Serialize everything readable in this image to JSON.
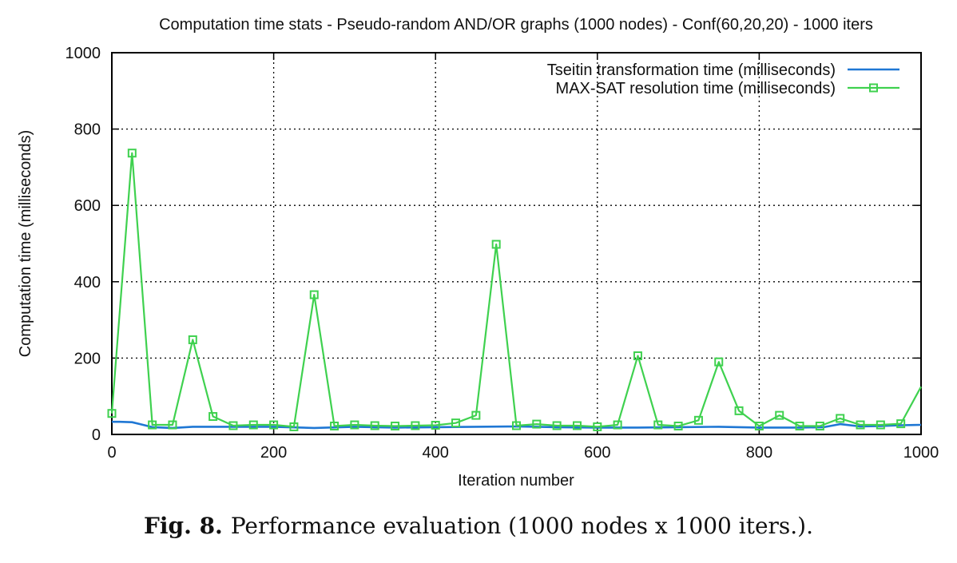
{
  "chart_data": {
    "type": "line",
    "title": "Computation time stats - Pseudo-random AND/OR graphs (1000 nodes) - Conf(60,20,20) - 1000 iters",
    "xlabel": "Iteration number",
    "ylabel": "Computation time (milliseconds)",
    "xlim": [
      0,
      1000
    ],
    "ylim": [
      0,
      1000
    ],
    "xticks": [
      0,
      200,
      400,
      600,
      800,
      1000
    ],
    "yticks": [
      0,
      200,
      400,
      600,
      800,
      1000
    ],
    "grid": true,
    "legend_position": "top-right",
    "series": [
      {
        "name": "Tseitin transformation time (milliseconds)",
        "color": "#1f77d4",
        "marker": "none",
        "x": [
          0,
          10,
          25,
          35,
          50,
          75,
          100,
          150,
          200,
          250,
          300,
          350,
          400,
          450,
          500,
          550,
          600,
          650,
          700,
          750,
          800,
          850,
          880,
          900,
          925,
          950,
          975,
          1000
        ],
        "y": [
          33,
          33,
          32,
          27,
          19,
          17,
          20,
          20,
          20,
          17,
          20,
          18,
          19,
          20,
          21,
          19,
          18,
          18,
          19,
          20,
          18,
          18,
          19,
          27,
          21,
          22,
          24,
          25
        ]
      },
      {
        "name": "MAX-SAT resolution time (milliseconds)",
        "color": "#3fd14f",
        "marker": "square",
        "x": [
          0,
          25,
          50,
          75,
          100,
          125,
          150,
          175,
          200,
          225,
          250,
          275,
          300,
          325,
          350,
          375,
          400,
          425,
          450,
          475,
          500,
          525,
          550,
          575,
          600,
          625,
          650,
          675,
          700,
          725,
          750,
          775,
          800,
          825,
          850,
          875,
          900,
          925,
          950,
          975,
          1000
        ],
        "y": [
          55,
          737,
          25,
          25,
          248,
          47,
          23,
          25,
          25,
          20,
          366,
          22,
          25,
          23,
          22,
          23,
          24,
          30,
          50,
          498,
          23,
          27,
          23,
          23,
          20,
          25,
          206,
          25,
          22,
          37,
          190,
          62,
          22,
          50,
          22,
          22,
          42,
          25,
          25,
          28,
          125
        ],
        "marker_at": [
          0,
          25,
          50,
          75,
          100,
          125,
          150,
          175,
          200,
          225,
          250,
          275,
          300,
          325,
          350,
          375,
          400,
          425,
          450,
          475,
          500,
          525,
          550,
          575,
          600,
          625,
          650,
          675,
          700,
          725,
          750,
          775,
          800,
          825,
          850,
          875,
          900,
          925,
          950,
          975
        ]
      }
    ]
  },
  "caption": {
    "label": "Fig. 8.",
    "text": "Performance evaluation (1000 nodes x 1000 iters.)."
  }
}
